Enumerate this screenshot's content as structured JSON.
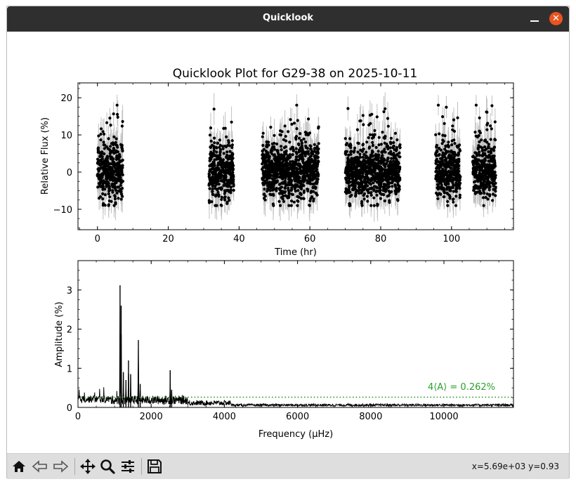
{
  "window": {
    "title": "Quicklook"
  },
  "toolbar": {
    "buttons": [
      "home-icon",
      "back-icon",
      "forward-icon",
      "pan-icon",
      "zoom-icon",
      "configure-icon",
      "save-icon"
    ],
    "coords": "x=5.69e+03 y=0.93"
  },
  "chart_data": [
    {
      "type": "scatter",
      "title": "Quicklook Plot for G29-38 on 2025-10-11",
      "xlabel": "Time (hr)",
      "ylabel": "Relative Flux (%)",
      "xlim": [
        -5.5,
        117.5
      ],
      "ylim": [
        -15.5,
        24.0
      ],
      "xticks": [
        0,
        20,
        40,
        60,
        80,
        100
      ],
      "yticks": [
        -10,
        0,
        10,
        20
      ],
      "xtick_labels": [
        "0",
        "20",
        "40",
        "60",
        "80",
        "100"
      ],
      "ytick_labels": [
        "−10",
        "0",
        "10",
        "20"
      ],
      "segments": [
        {
          "start": 0.0,
          "end": 7.2
        },
        {
          "start": 31.5,
          "end": 38.5
        },
        {
          "start": 46.5,
          "end": 62.5
        },
        {
          "start": 70.0,
          "end": 85.5
        },
        {
          "start": 95.5,
          "end": 102.5
        },
        {
          "start": 106.0,
          "end": 112.5
        }
      ],
      "flux_range": [
        -9,
        18
      ],
      "errorbar_color": "#c0c0c0",
      "point_color": "#000000",
      "grid": false
    },
    {
      "type": "line",
      "xlabel": "Frequency (μHz)",
      "ylabel": "Amplitude (%)",
      "xlim": [
        0,
        11900
      ],
      "ylim": [
        0,
        3.75
      ],
      "xticks": [
        0,
        2000,
        4000,
        6000,
        8000,
        10000
      ],
      "yticks": [
        0,
        1,
        2,
        3
      ],
      "xtick_labels": [
        "0",
        "2000",
        "4000",
        "6000",
        "8000",
        "10000"
      ],
      "ytick_labels": [
        "0",
        "1",
        "2",
        "3"
      ],
      "peaks": [
        {
          "x": 1150,
          "y": 3.12
        },
        {
          "x": 1180,
          "y": 2.6
        },
        {
          "x": 1240,
          "y": 0.9
        },
        {
          "x": 1310,
          "y": 0.7
        },
        {
          "x": 1380,
          "y": 1.2
        },
        {
          "x": 1440,
          "y": 0.85
        },
        {
          "x": 1650,
          "y": 1.72
        },
        {
          "x": 1700,
          "y": 0.6
        },
        {
          "x": 2520,
          "y": 0.95
        },
        {
          "x": 2560,
          "y": 0.45
        }
      ],
      "significance_line": {
        "y": 0.262,
        "label": "4⟨A⟩ = 0.262%",
        "color": "#2ca02c"
      },
      "line_color": "#000000"
    }
  ]
}
